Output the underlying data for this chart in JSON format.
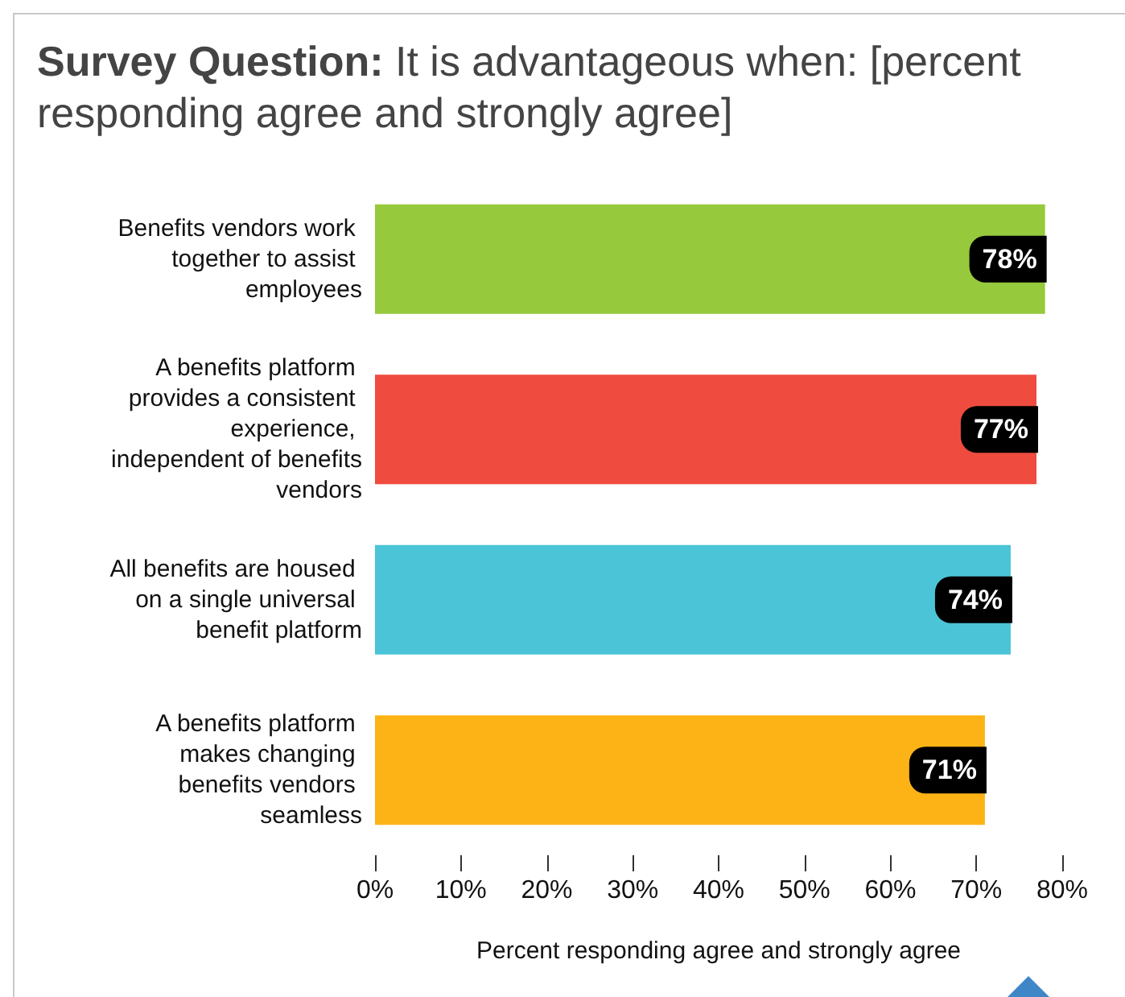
{
  "chart_data": {
    "type": "bar",
    "orientation": "horizontal",
    "title": "Survey Question: It is advantageous when: [percent responding agree and strongly agree]",
    "categories": [
      "Benefits vendors work together to assist employees",
      "A benefits platform provides a consistent experience, independent of benefits vendors",
      "All benefits are housed on a single universal benefit platform",
      "A benefits platform makes changing benefits vendors seamless"
    ],
    "values": [
      78,
      77,
      74,
      71
    ],
    "colors": [
      "#97c93d",
      "#f04b3f",
      "#4bc4d8",
      "#fdb316"
    ],
    "value_labels": [
      "78%",
      "77%",
      "74%",
      "71%"
    ],
    "xlabel": "Percent responding agree and strongly agree",
    "xlim": [
      0,
      80
    ],
    "xticks": [
      {
        "value": 0,
        "label": "0%"
      },
      {
        "value": 10,
        "label": "10%"
      },
      {
        "value": 20,
        "label": "20%"
      },
      {
        "value": 30,
        "label": "30%"
      },
      {
        "value": 40,
        "label": "40%"
      },
      {
        "value": 50,
        "label": "50%"
      },
      {
        "value": 60,
        "label": "60%"
      },
      {
        "value": 70,
        "label": "70%"
      },
      {
        "value": 80,
        "label": "80%"
      }
    ],
    "grid": false
  }
}
